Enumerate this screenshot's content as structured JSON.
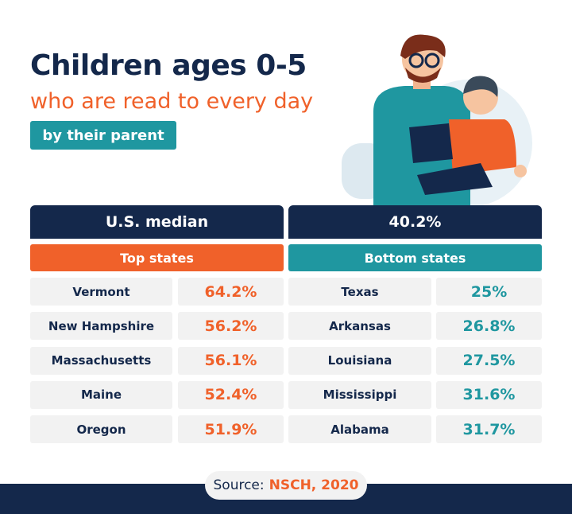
{
  "header": {
    "title": "Children ages 0-5",
    "subtitle": "who are read to every day",
    "tag": "by their parent"
  },
  "table": {
    "median_label": "U.S. median",
    "median_value": "40.2%",
    "top_header": "Top states",
    "bottom_header": "Bottom states",
    "top": [
      [
        "Vermont",
        "64.2%"
      ],
      [
        "New Hampshire",
        "56.2%"
      ],
      [
        "Massachusetts",
        "56.1%"
      ],
      [
        "Maine",
        "52.4%"
      ],
      [
        "Oregon",
        "51.9%"
      ]
    ],
    "bottom": [
      [
        "Texas",
        "25%"
      ],
      [
        "Arkansas",
        "26.8%"
      ],
      [
        "Louisiana",
        "27.5%"
      ],
      [
        "Mississippi",
        "31.6%"
      ],
      [
        "Alabama",
        "31.7%"
      ]
    ]
  },
  "source": {
    "label": "Source:",
    "name": "NSCH, 2020"
  }
}
